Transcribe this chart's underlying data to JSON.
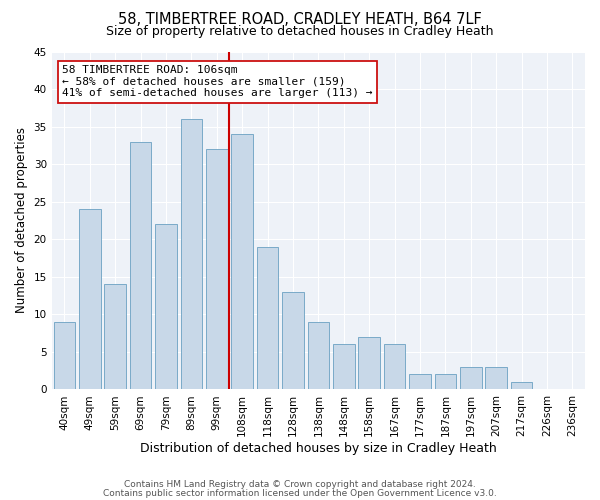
{
  "title": "58, TIMBERTREE ROAD, CRADLEY HEATH, B64 7LF",
  "subtitle": "Size of property relative to detached houses in Cradley Heath",
  "xlabel": "Distribution of detached houses by size in Cradley Heath",
  "ylabel": "Number of detached properties",
  "bar_labels": [
    "40sqm",
    "49sqm",
    "59sqm",
    "69sqm",
    "79sqm",
    "89sqm",
    "99sqm",
    "108sqm",
    "118sqm",
    "128sqm",
    "138sqm",
    "148sqm",
    "158sqm",
    "167sqm",
    "177sqm",
    "187sqm",
    "197sqm",
    "207sqm",
    "217sqm",
    "226sqm",
    "236sqm"
  ],
  "bar_values": [
    9,
    24,
    14,
    33,
    22,
    36,
    32,
    34,
    19,
    13,
    9,
    6,
    7,
    6,
    2,
    2,
    3,
    3,
    1,
    0,
    0
  ],
  "bar_color": "#c8d8e8",
  "bar_edgecolor": "#7aaac8",
  "vline_color": "#cc0000",
  "annotation_lines": [
    "58 TIMBERTREE ROAD: 106sqm",
    "← 58% of detached houses are smaller (159)",
    "41% of semi-detached houses are larger (113) →"
  ],
  "ylim": [
    0,
    45
  ],
  "yticks": [
    0,
    5,
    10,
    15,
    20,
    25,
    30,
    35,
    40,
    45
  ],
  "footer1": "Contains HM Land Registry data © Crown copyright and database right 2024.",
  "footer2": "Contains public sector information licensed under the Open Government Licence v3.0.",
  "title_fontsize": 10.5,
  "subtitle_fontsize": 9,
  "xlabel_fontsize": 9,
  "ylabel_fontsize": 8.5,
  "tick_fontsize": 7.5,
  "annotation_fontsize": 8,
  "footer_fontsize": 6.5,
  "bg_color": "#eef2f8"
}
